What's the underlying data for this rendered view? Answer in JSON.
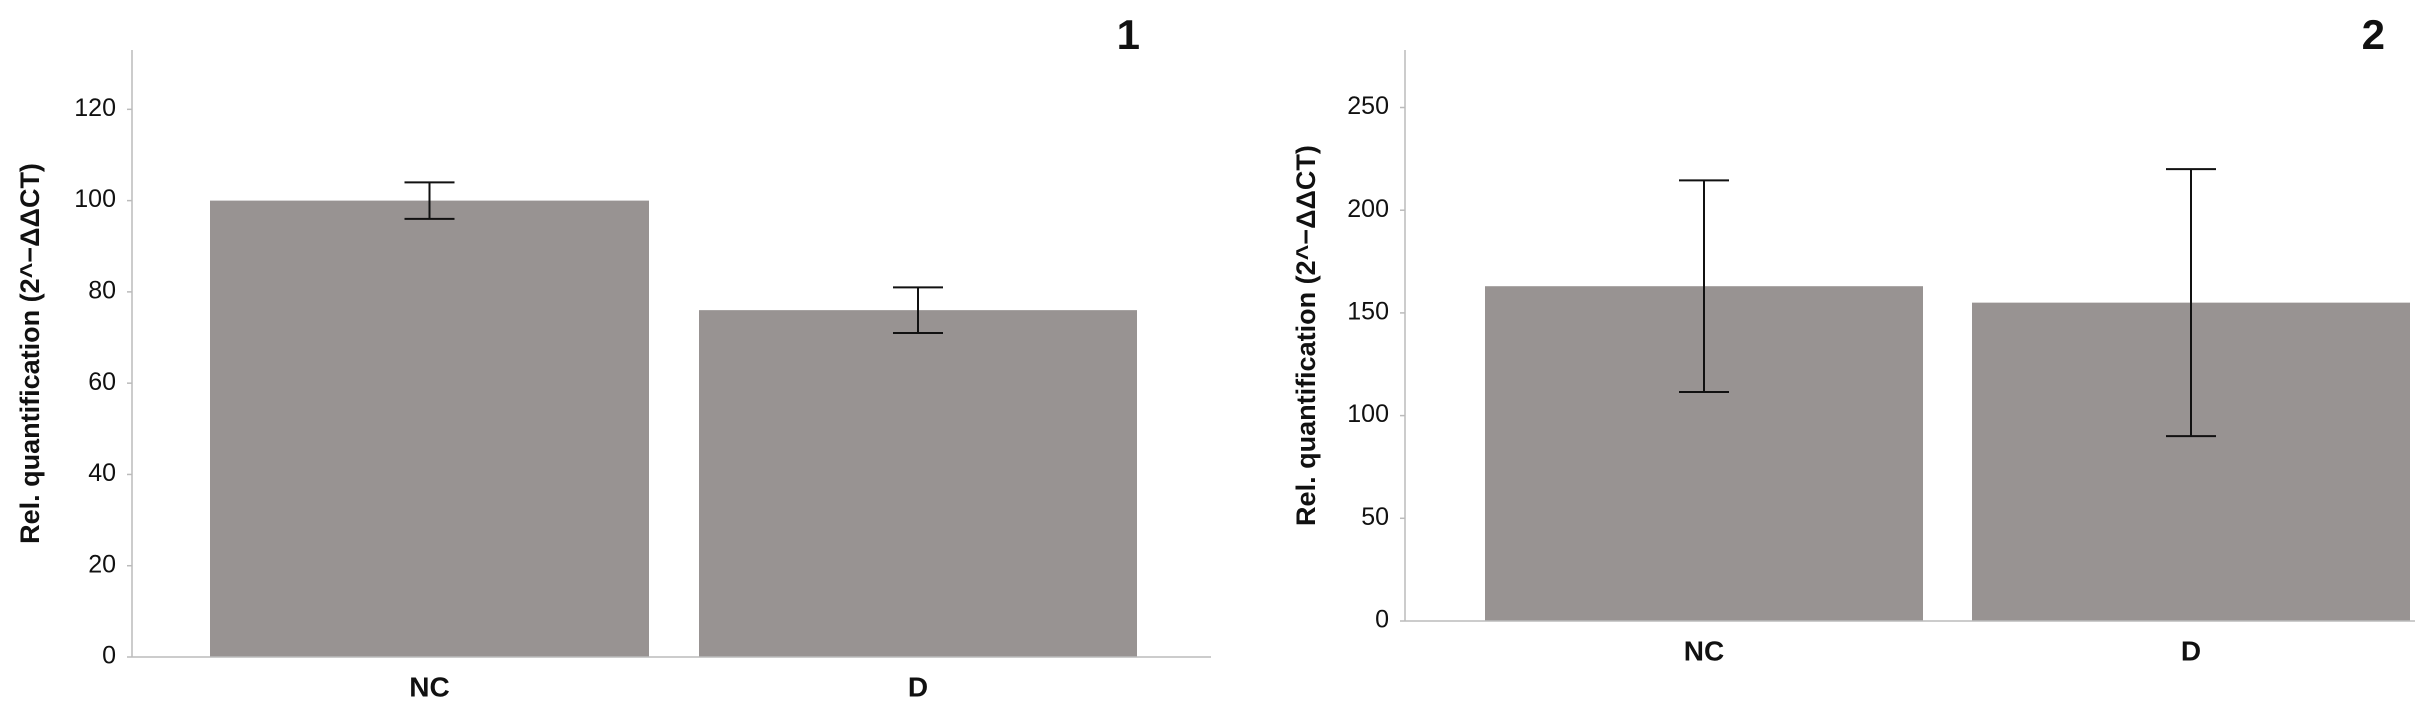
{
  "chart_data": [
    {
      "type": "bar",
      "panel_label": "1",
      "ylabel": "Rel. quantification (2^−ΔΔCT)",
      "categories": [
        "NC",
        "D"
      ],
      "values": [
        100,
        76
      ],
      "errors": [
        4,
        5
      ],
      "color": "#989392",
      "ylim": [
        0,
        133
      ],
      "yticks": [
        0,
        20,
        40,
        60,
        80,
        100,
        120
      ]
    },
    {
      "type": "bar",
      "panel_label": "2",
      "ylabel": "Rel. quantification (2^−ΔΔCT)",
      "categories": [
        "NC",
        "D"
      ],
      "values": [
        163,
        155
      ],
      "errors": [
        51.5,
        65
      ],
      "color": "#989392",
      "ylim": [
        0,
        278
      ],
      "yticks": [
        0,
        50,
        100,
        150,
        200,
        250
      ]
    }
  ]
}
